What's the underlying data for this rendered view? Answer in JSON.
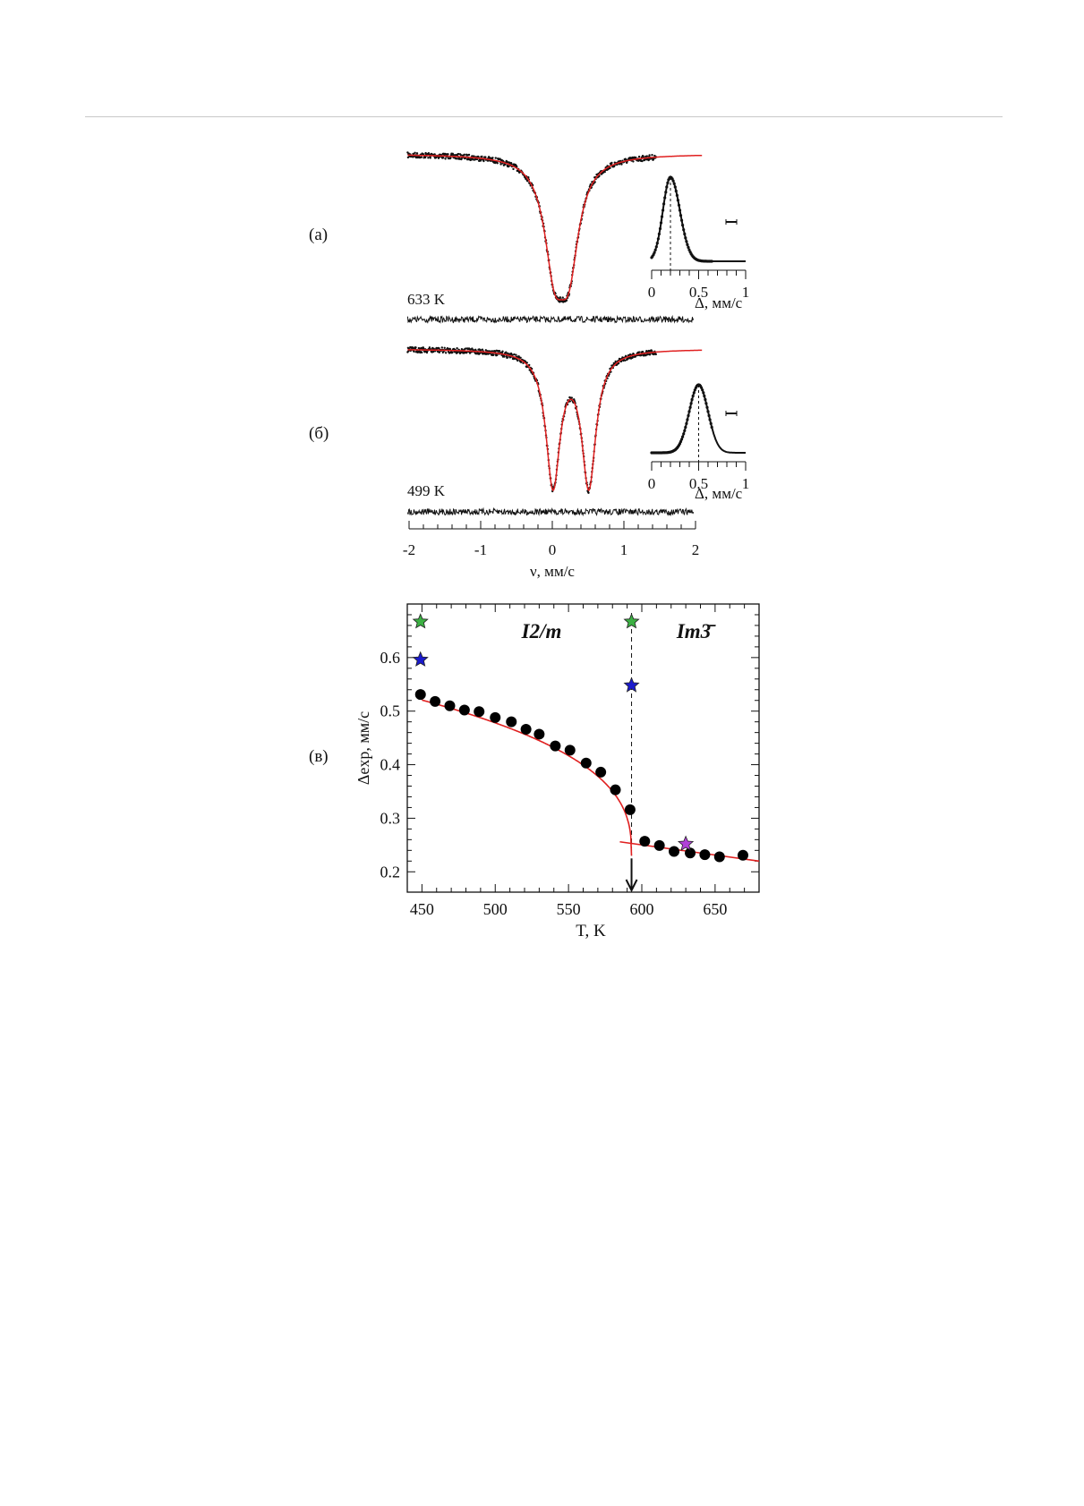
{
  "panel_labels": {
    "a": "(а)",
    "b": "(б)",
    "c": "(в)"
  },
  "chart_data": [
    {
      "type": "line",
      "panel": "(а)",
      "temperature_label": "633 K",
      "x_range": [
        -2,
        2
      ],
      "doublet": {
        "center": 0.13,
        "splitting": 0.2,
        "hwhm": 0.17,
        "depth": 1.0
      },
      "inset": {
        "type": "line",
        "xlabel": "Δ, мм/с",
        "x_ticks": [
          "0",
          "0.5",
          "1"
        ],
        "x_range": [
          0,
          1
        ],
        "peak_position": 0.2,
        "peak_width": 0.08
      }
    },
    {
      "type": "line",
      "panel": "(б)",
      "temperature_label": "499 K",
      "x_range": [
        -2,
        2
      ],
      "doublet": {
        "center": 0.26,
        "splitting": 0.5,
        "hwhm": 0.12,
        "depth": 1.0
      },
      "xlabel": "ν, мм/с",
      "x_ticks": [
        "-2",
        "-1",
        "0",
        "1",
        "2"
      ],
      "inset": {
        "type": "line",
        "xlabel": "Δ, мм/с",
        "x_ticks": [
          "0",
          "0.5",
          "1"
        ],
        "x_range": [
          0,
          1
        ],
        "peak_position": 0.5,
        "peak_width": 0.1
      }
    },
    {
      "type": "scatter",
      "panel": "(в)",
      "xlabel": "T, K",
      "ylabel": "Δexp, мм/с",
      "xlim": [
        440,
        680
      ],
      "ylim": [
        0.162,
        0.7
      ],
      "x_ticks": [
        "450",
        "500",
        "550",
        "600",
        "650"
      ],
      "y_ticks": [
        "0.2",
        "0.3",
        "0.4",
        "0.5",
        "0.6"
      ],
      "annotations": {
        "phase_low": "I2/m",
        "phase_high": "Im3̄"
      },
      "transition_T": 593,
      "points": [
        [
          449,
          0.531
        ],
        [
          459,
          0.518
        ],
        [
          469,
          0.51
        ],
        [
          479,
          0.502
        ],
        [
          489,
          0.499
        ],
        [
          500,
          0.488
        ],
        [
          511,
          0.48
        ],
        [
          521,
          0.466
        ],
        [
          530,
          0.457
        ],
        [
          541,
          0.435
        ],
        [
          551,
          0.427
        ],
        [
          562,
          0.403
        ],
        [
          572,
          0.386
        ],
        [
          582,
          0.353
        ],
        [
          592,
          0.316
        ],
        [
          602,
          0.257
        ],
        [
          612,
          0.249
        ],
        [
          622,
          0.238
        ],
        [
          633,
          0.235
        ],
        [
          643,
          0.232
        ],
        [
          653,
          0.228
        ],
        [
          669,
          0.231
        ]
      ],
      "stars": [
        {
          "T": 449,
          "value": 0.667,
          "color": "#3cb043"
        },
        {
          "T": 449,
          "value": 0.596,
          "color": "#1a1acc"
        },
        {
          "T": 593,
          "value": 0.667,
          "color": "#3cb043"
        },
        {
          "T": 593,
          "value": 0.548,
          "color": "#1a1acc"
        },
        {
          "T": 630,
          "value": 0.252,
          "color": "#b040d8"
        }
      ],
      "fit_low": {
        "Tc": 593,
        "offset": 0.23,
        "amplitude": 0.0468,
        "beta": 0.368,
        "T_start": 450
      },
      "fit_high": {
        "T": [
          585,
          680
        ],
        "values": [
          0.256,
          0.22
        ]
      },
      "fit_color": "#e02020"
    }
  ]
}
